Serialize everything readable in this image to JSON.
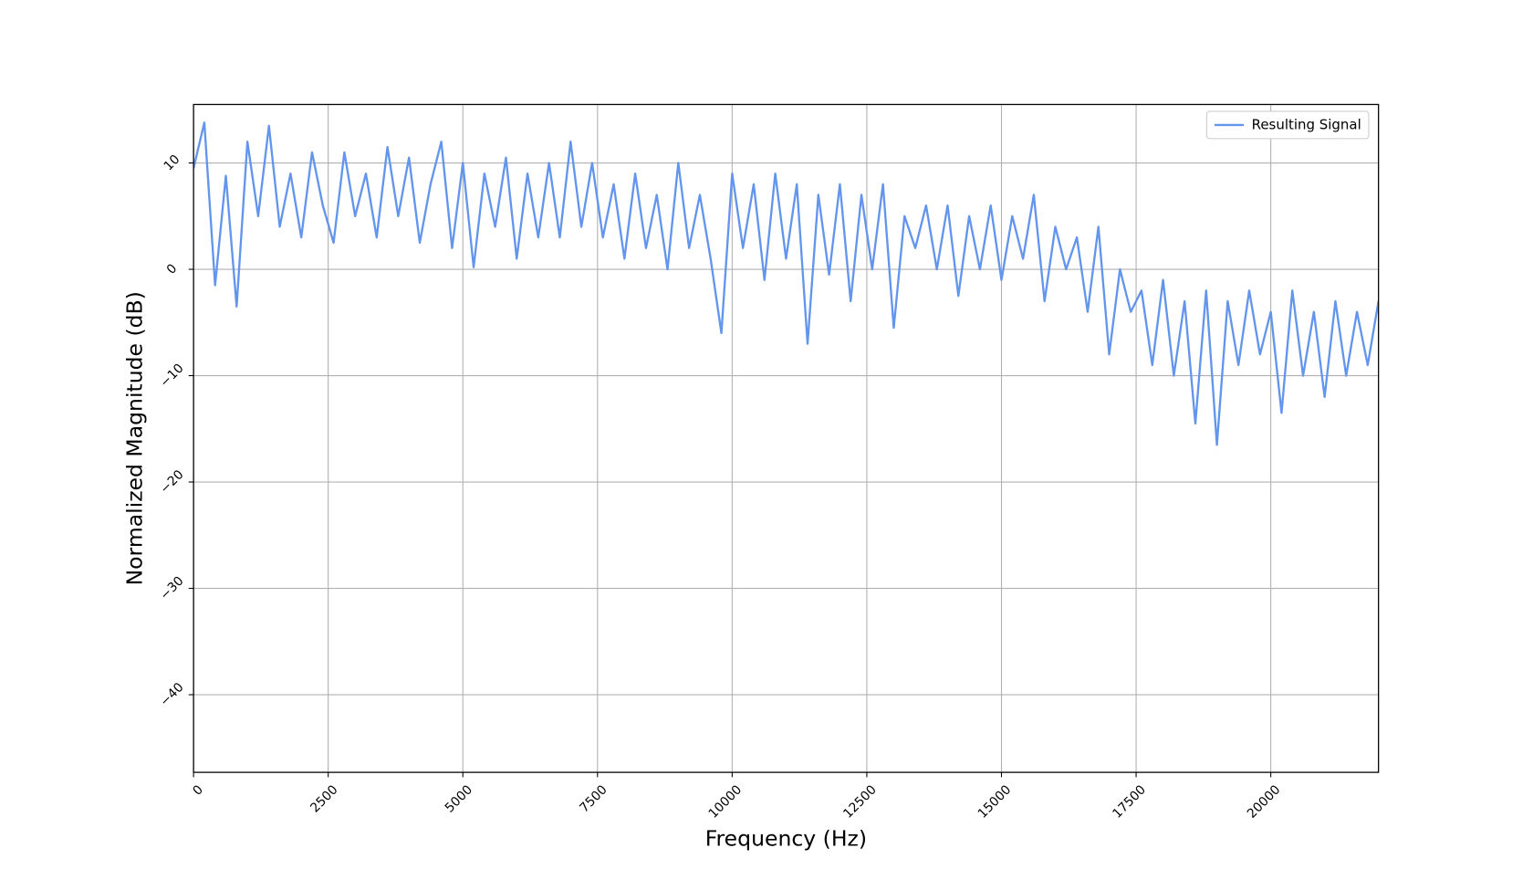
{
  "chart_data": {
    "type": "line",
    "xlabel": "Frequency (Hz)",
    "ylabel": "Normalized Magnitude (dB)",
    "x": [
      0,
      200,
      400,
      600,
      800,
      1000,
      1200,
      1400,
      1600,
      1800,
      2000,
      2200,
      2400,
      2600,
      2800,
      3000,
      3200,
      3400,
      3600,
      3800,
      4000,
      4200,
      4400,
      4600,
      4800,
      5000,
      5200,
      5400,
      5600,
      5800,
      6000,
      6200,
      6400,
      6600,
      6800,
      7000,
      7200,
      7400,
      7600,
      7800,
      8000,
      8200,
      8400,
      8600,
      8800,
      9000,
      9200,
      9400,
      9600,
      9800,
      10000,
      10200,
      10400,
      10600,
      10800,
      11000,
      11200,
      11400,
      11600,
      11800,
      12000,
      12200,
      12400,
      12600,
      12800,
      13000,
      13200,
      13400,
      13600,
      13800,
      14000,
      14200,
      14400,
      14600,
      14800,
      15000,
      15200,
      15400,
      15600,
      15800,
      16000,
      16200,
      16400,
      16600,
      16800,
      17000,
      17200,
      17400,
      17600,
      17800,
      18000,
      18200,
      18400,
      18600,
      18800,
      19000,
      19200,
      19400,
      19600,
      19800,
      20000,
      20200,
      20400,
      20600,
      20800,
      21000,
      21200,
      21400,
      21600,
      21800,
      22000
    ],
    "series": [
      {
        "name": "Resulting Signal",
        "color": "#6495ed",
        "values": [
          9.5,
          13.8,
          -1.5,
          8.8,
          -3.5,
          12,
          5,
          13.5,
          4,
          9,
          3,
          11,
          6,
          2.5,
          11,
          5,
          9,
          3,
          11.5,
          5,
          10.5,
          2.5,
          8,
          12,
          2,
          10,
          0.2,
          9,
          4,
          10.5,
          1,
          9,
          3,
          10,
          3,
          12,
          4,
          10,
          3,
          8,
          1,
          9,
          2,
          7,
          0,
          10,
          2,
          7,
          1,
          -6,
          9,
          2,
          8,
          -1,
          9,
          1,
          8,
          -7,
          7,
          -0.5,
          8,
          -3,
          7,
          0,
          8,
          -5.5,
          5,
          2,
          6,
          0,
          6,
          -2.5,
          5,
          0,
          6,
          -1,
          5,
          1,
          7,
          -3,
          4,
          0,
          3,
          -4,
          4,
          -8,
          0,
          -4,
          -2,
          -9,
          -1,
          -10,
          -3,
          -14.5,
          -2,
          -16.5,
          -3,
          -9,
          -2,
          -8,
          -4,
          -13.5,
          -2,
          -10,
          -4,
          -12,
          -3,
          -10,
          -4,
          -9,
          -3
        ]
      }
    ],
    "xlim": [
      0,
      22000
    ],
    "ylim": [
      -47.3,
      15.5
    ],
    "xticks": [
      0,
      2500,
      5000,
      7500,
      10000,
      12500,
      15000,
      17500,
      20000
    ],
    "yticks": [
      {
        "value": -40,
        "label": "−40"
      },
      {
        "value": -30,
        "label": "−30"
      },
      {
        "value": -20,
        "label": "−20"
      },
      {
        "value": -10,
        "label": "−10"
      },
      0,
      10
    ],
    "grid": true,
    "legend": "upper right"
  }
}
